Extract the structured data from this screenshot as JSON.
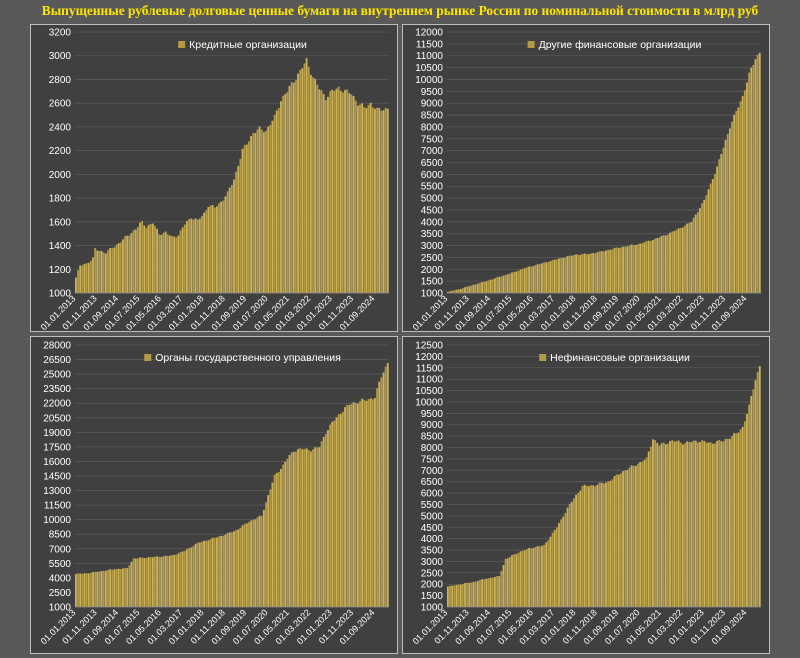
{
  "title": "Выпущенные рублевые долговые ценные бумаги на внутреннем рынке России по номинальной стоимости в млрд руб",
  "colors": {
    "bar": "#b39a45",
    "bar_light": "#cdb25c",
    "text": "#ffffff",
    "title": "#ffe600",
    "grid": "#5a5a5a",
    "panel_bg": "#404040"
  },
  "chart_data": [
    {
      "id": "credit",
      "type": "bar",
      "legend": "Кредитные организации",
      "legend_position": "top-center",
      "grid": true,
      "ylim": [
        1000,
        3200
      ],
      "yticks": [
        1000,
        1200,
        1400,
        1600,
        1800,
        2000,
        2200,
        2400,
        2600,
        2800,
        3000,
        3200
      ],
      "xticks": [
        "01.01.2013",
        "01.11.2013",
        "01.09.2014",
        "01.07.2015",
        "01.05.2016",
        "01.03.2017",
        "01.01.2018",
        "01.11.2018",
        "01.09.2019",
        "01.07.2020",
        "01.05.2021",
        "01.03.2022",
        "01.01.2023",
        "01.11.2023",
        "01.09.2024"
      ],
      "x_start": "2013-01",
      "x_end": "2025-03",
      "anchors": [
        [
          "2013-01",
          1130
        ],
        [
          "2013-03",
          1230
        ],
        [
          "2013-06",
          1250
        ],
        [
          "2013-09",
          1290
        ],
        [
          "2013-10",
          1370
        ],
        [
          "2014-03",
          1340
        ],
        [
          "2014-06",
          1380
        ],
        [
          "2014-09",
          1420
        ],
        [
          "2015-01",
          1480
        ],
        [
          "2015-05",
          1540
        ],
        [
          "2015-08",
          1600
        ],
        [
          "2015-10",
          1560
        ],
        [
          "2016-01",
          1590
        ],
        [
          "2016-04",
          1500
        ],
        [
          "2016-07",
          1510
        ],
        [
          "2016-10",
          1470
        ],
        [
          "2017-01",
          1490
        ],
        [
          "2017-04",
          1580
        ],
        [
          "2017-07",
          1640
        ],
        [
          "2017-10",
          1610
        ],
        [
          "2018-01",
          1670
        ],
        [
          "2018-03",
          1740
        ],
        [
          "2018-06",
          1720
        ],
        [
          "2018-09",
          1770
        ],
        [
          "2018-12",
          1840
        ],
        [
          "2019-03",
          1960
        ],
        [
          "2019-07",
          2200
        ],
        [
          "2019-12",
          2350
        ],
        [
          "2020-03",
          2380
        ],
        [
          "2020-06",
          2370
        ],
        [
          "2020-10",
          2480
        ],
        [
          "2021-01",
          2630
        ],
        [
          "2021-04",
          2700
        ],
        [
          "2021-07",
          2790
        ],
        [
          "2021-10",
          2870
        ],
        [
          "2022-01",
          2960
        ],
        [
          "2022-04",
          2820
        ],
        [
          "2022-07",
          2720
        ],
        [
          "2022-10",
          2650
        ],
        [
          "2023-01",
          2700
        ],
        [
          "2023-04",
          2730
        ],
        [
          "2023-07",
          2700
        ],
        [
          "2023-10",
          2680
        ],
        [
          "2024-01",
          2600
        ],
        [
          "2024-04",
          2560
        ],
        [
          "2024-07",
          2600
        ],
        [
          "2024-10",
          2540
        ],
        [
          "2025-03",
          2560
        ]
      ]
    },
    {
      "id": "other-fin",
      "type": "bar",
      "legend": "Другие финансовые организации",
      "legend_position": "top-center",
      "grid": true,
      "ylim": [
        1000,
        12000
      ],
      "yticks": [
        1000,
        1500,
        2000,
        2500,
        3000,
        3500,
        4000,
        4500,
        5000,
        5500,
        6000,
        6500,
        7000,
        7500,
        8000,
        8500,
        9000,
        9500,
        10000,
        10500,
        11000,
        11500,
        12000
      ],
      "xticks": [
        "01.01.2013",
        "01.11.2013",
        "01.09.2014",
        "01.07.2015",
        "01.05.2016",
        "01.03.2017",
        "01.01.2018",
        "01.11.2018",
        "01.09.2019",
        "01.07.2020",
        "01.05.2021",
        "01.03.2022",
        "01.01.2023",
        "01.11.2023",
        "01.09.2024"
      ],
      "x_start": "2013-01",
      "x_end": "2025-03",
      "anchors": [
        [
          "2013-01",
          1050
        ],
        [
          "2013-07",
          1180
        ],
        [
          "2014-01",
          1350
        ],
        [
          "2014-07",
          1500
        ],
        [
          "2015-01",
          1680
        ],
        [
          "2015-07",
          1850
        ],
        [
          "2016-01",
          2050
        ],
        [
          "2016-07",
          2200
        ],
        [
          "2017-01",
          2350
        ],
        [
          "2017-07",
          2500
        ],
        [
          "2018-01",
          2620
        ],
        [
          "2018-07",
          2650
        ],
        [
          "2019-01",
          2750
        ],
        [
          "2019-07",
          2880
        ],
        [
          "2020-01",
          2980
        ],
        [
          "2020-07",
          3080
        ],
        [
          "2021-01",
          3250
        ],
        [
          "2021-07",
          3450
        ],
        [
          "2022-01",
          3700
        ],
        [
          "2022-07",
          4000
        ],
        [
          "2023-01",
          4900
        ],
        [
          "2023-07",
          6300
        ],
        [
          "2024-01",
          8000
        ],
        [
          "2024-07",
          9300
        ],
        [
          "2024-10",
          10200
        ],
        [
          "2025-01",
          10900
        ],
        [
          "2025-03",
          11150
        ]
      ]
    },
    {
      "id": "government",
      "type": "bar",
      "legend": "Органы государственного управления",
      "legend_position": "top-center",
      "grid": true,
      "ylim": [
        1000,
        28000
      ],
      "yticks": [
        1000,
        2500,
        4000,
        5500,
        7000,
        8500,
        10000,
        11500,
        13000,
        14500,
        16000,
        17500,
        19000,
        20500,
        22000,
        23500,
        25000,
        26500,
        28000
      ],
      "xticks": [
        "01.01.2013",
        "01.11.2013",
        "01.09.2014",
        "01.07.2015",
        "01.05.2016",
        "01.03.2017",
        "01.01.2018",
        "01.11.2018",
        "01.09.2019",
        "01.07.2020",
        "01.05.2021",
        "01.03.2022",
        "01.01.2023",
        "01.11.2023",
        "01.09.2024"
      ],
      "x_start": "2013-01",
      "x_end": "2025-03",
      "anchors": [
        [
          "2013-01",
          4400
        ],
        [
          "2013-07",
          4500
        ],
        [
          "2014-01",
          4700
        ],
        [
          "2014-07",
          4900
        ],
        [
          "2015-01",
          5000
        ],
        [
          "2015-04",
          6000
        ],
        [
          "2015-10",
          6100
        ],
        [
          "2016-04",
          6200
        ],
        [
          "2016-10",
          6300
        ],
        [
          "2017-04",
          6800
        ],
        [
          "2017-10",
          7600
        ],
        [
          "2018-04",
          8000
        ],
        [
          "2018-10",
          8400
        ],
        [
          "2019-04",
          8900
        ],
        [
          "2019-10",
          9800
        ],
        [
          "2020-04",
          10400
        ],
        [
          "2020-07",
          12500
        ],
        [
          "2020-10",
          14500
        ],
        [
          "2021-01",
          15300
        ],
        [
          "2021-04",
          16300
        ],
        [
          "2021-07",
          17100
        ],
        [
          "2021-10",
          17300
        ],
        [
          "2022-03",
          17200
        ],
        [
          "2022-07",
          17500
        ],
        [
          "2022-10",
          19000
        ],
        [
          "2023-01",
          20000
        ],
        [
          "2023-04",
          20800
        ],
        [
          "2023-07",
          21500
        ],
        [
          "2023-10",
          22000
        ],
        [
          "2024-04",
          22300
        ],
        [
          "2024-09",
          22600
        ],
        [
          "2024-12",
          24800
        ],
        [
          "2025-03",
          26200
        ]
      ]
    },
    {
      "id": "nonfin",
      "type": "bar",
      "legend": "Нефинансовые организации",
      "legend_position": "top-center",
      "grid": true,
      "ylim": [
        1000,
        12500
      ],
      "yticks": [
        1000,
        1500,
        2000,
        2500,
        3000,
        3500,
        4000,
        4500,
        5000,
        5500,
        6000,
        6500,
        7000,
        7500,
        8000,
        8500,
        9000,
        9500,
        10000,
        10500,
        11000,
        11500,
        12000,
        12500
      ],
      "xticks": [
        "01.01.2013",
        "01.11.2013",
        "01.09.2014",
        "01.07.2015",
        "01.05.2016",
        "01.03.2017",
        "01.01.2018",
        "01.11.2018",
        "01.09.2019",
        "01.07.2020",
        "01.05.2021",
        "01.03.2022",
        "01.01.2023",
        "01.11.2023",
        "01.09.2024"
      ],
      "x_start": "2013-01",
      "x_end": "2025-03",
      "anchors": [
        [
          "2013-01",
          1900
        ],
        [
          "2013-07",
          2000
        ],
        [
          "2014-01",
          2100
        ],
        [
          "2014-07",
          2250
        ],
        [
          "2015-01",
          2350
        ],
        [
          "2015-04",
          3100
        ],
        [
          "2015-10",
          3400
        ],
        [
          "2016-04",
          3600
        ],
        [
          "2016-10",
          3700
        ],
        [
          "2017-04",
          4500
        ],
        [
          "2017-10",
          5500
        ],
        [
          "2018-04",
          6300
        ],
        [
          "2018-10",
          6350
        ],
        [
          "2019-04",
          6500
        ],
        [
          "2019-10",
          6900
        ],
        [
          "2020-04",
          7200
        ],
        [
          "2020-10",
          7500
        ],
        [
          "2021-01",
          8400
        ],
        [
          "2021-04",
          8100
        ],
        [
          "2021-10",
          8300
        ],
        [
          "2022-04",
          8200
        ],
        [
          "2022-10",
          8300
        ],
        [
          "2023-04",
          8200
        ],
        [
          "2023-10",
          8300
        ],
        [
          "2024-04",
          8600
        ],
        [
          "2024-07",
          8900
        ],
        [
          "2024-10",
          9800
        ],
        [
          "2025-01",
          11000
        ],
        [
          "2025-03",
          11600
        ]
      ]
    }
  ]
}
